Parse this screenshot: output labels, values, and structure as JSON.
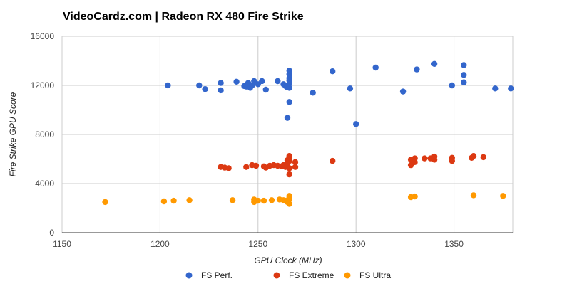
{
  "chart_data": {
    "type": "scatter",
    "title": "VideoCardz.com | Radeon RX 480 Fire Strike",
    "xlabel": "GPU Clock (MHz)",
    "ylabel": "Fire Strike GPU Score",
    "xlim": [
      1150,
      1380
    ],
    "ylim": [
      0,
      16000
    ],
    "xticks": [
      1150,
      1200,
      1250,
      1300,
      1350
    ],
    "yticks": [
      0,
      4000,
      8000,
      12000,
      16000
    ],
    "grid": true,
    "legend_position": "bottom",
    "series": [
      {
        "name": "FS Perf.",
        "color": "#3366cc",
        "points": [
          [
            1204,
            12000
          ],
          [
            1220,
            12000
          ],
          [
            1223,
            11700
          ],
          [
            1231,
            12200
          ],
          [
            1231,
            11600
          ],
          [
            1239,
            12300
          ],
          [
            1243,
            11950
          ],
          [
            1244,
            11900
          ],
          [
            1245,
            12200
          ],
          [
            1246,
            11800
          ],
          [
            1247,
            12000
          ],
          [
            1248,
            12350
          ],
          [
            1250,
            12100
          ],
          [
            1252,
            12350
          ],
          [
            1254,
            11650
          ],
          [
            1260,
            12350
          ],
          [
            1263,
            12100
          ],
          [
            1264,
            11950
          ],
          [
            1265,
            11850
          ],
          [
            1265,
            12000
          ],
          [
            1265,
            9350
          ],
          [
            1266,
            11800
          ],
          [
            1266,
            12150
          ],
          [
            1266,
            12400
          ],
          [
            1266,
            12600
          ],
          [
            1266,
            12900
          ],
          [
            1266,
            13200
          ],
          [
            1266,
            10650
          ],
          [
            1278,
            11400
          ],
          [
            1288,
            13150
          ],
          [
            1297,
            11750
          ],
          [
            1300,
            8850
          ],
          [
            1310,
            13450
          ],
          [
            1324,
            11500
          ],
          [
            1331,
            13300
          ],
          [
            1340,
            13750
          ],
          [
            1349,
            12000
          ],
          [
            1355,
            13650
          ],
          [
            1355,
            12850
          ],
          [
            1355,
            12250
          ],
          [
            1371,
            11750
          ],
          [
            1379,
            11750
          ]
        ]
      },
      {
        "name": "FS Extreme",
        "color": "#dc3912",
        "points": [
          [
            1231,
            5350
          ],
          [
            1233,
            5300
          ],
          [
            1235,
            5250
          ],
          [
            1244,
            5350
          ],
          [
            1247,
            5500
          ],
          [
            1249,
            5450
          ],
          [
            1253,
            5400
          ],
          [
            1254,
            5300
          ],
          [
            1256,
            5450
          ],
          [
            1258,
            5500
          ],
          [
            1260,
            5450
          ],
          [
            1262,
            5400
          ],
          [
            1263,
            5500
          ],
          [
            1264,
            5350
          ],
          [
            1265,
            5450
          ],
          [
            1265,
            5900
          ],
          [
            1265,
            5600
          ],
          [
            1266,
            6250
          ],
          [
            1266,
            6050
          ],
          [
            1266,
            5850
          ],
          [
            1266,
            5250
          ],
          [
            1266,
            4750
          ],
          [
            1269,
            5750
          ],
          [
            1269,
            5350
          ],
          [
            1288,
            5850
          ],
          [
            1328,
            5950
          ],
          [
            1328,
            5500
          ],
          [
            1330,
            6050
          ],
          [
            1330,
            5750
          ],
          [
            1335,
            6050
          ],
          [
            1338,
            6050
          ],
          [
            1340,
            6200
          ],
          [
            1340,
            5950
          ],
          [
            1349,
            6100
          ],
          [
            1349,
            5850
          ],
          [
            1359,
            6100
          ],
          [
            1360,
            6250
          ],
          [
            1365,
            6150
          ]
        ]
      },
      {
        "name": "FS Ultra",
        "color": "#ff9900",
        "points": [
          [
            1172,
            2500
          ],
          [
            1202,
            2550
          ],
          [
            1207,
            2600
          ],
          [
            1215,
            2650
          ],
          [
            1237,
            2650
          ],
          [
            1248,
            2700
          ],
          [
            1248,
            2500
          ],
          [
            1250,
            2600
          ],
          [
            1253,
            2600
          ],
          [
            1257,
            2650
          ],
          [
            1261,
            2700
          ],
          [
            1263,
            2650
          ],
          [
            1264,
            2600
          ],
          [
            1265,
            2500
          ],
          [
            1266,
            3000
          ],
          [
            1266,
            2850
          ],
          [
            1266,
            2750
          ],
          [
            1266,
            2350
          ],
          [
            1328,
            2900
          ],
          [
            1330,
            2950
          ],
          [
            1360,
            3050
          ],
          [
            1375,
            3000
          ]
        ]
      }
    ]
  }
}
